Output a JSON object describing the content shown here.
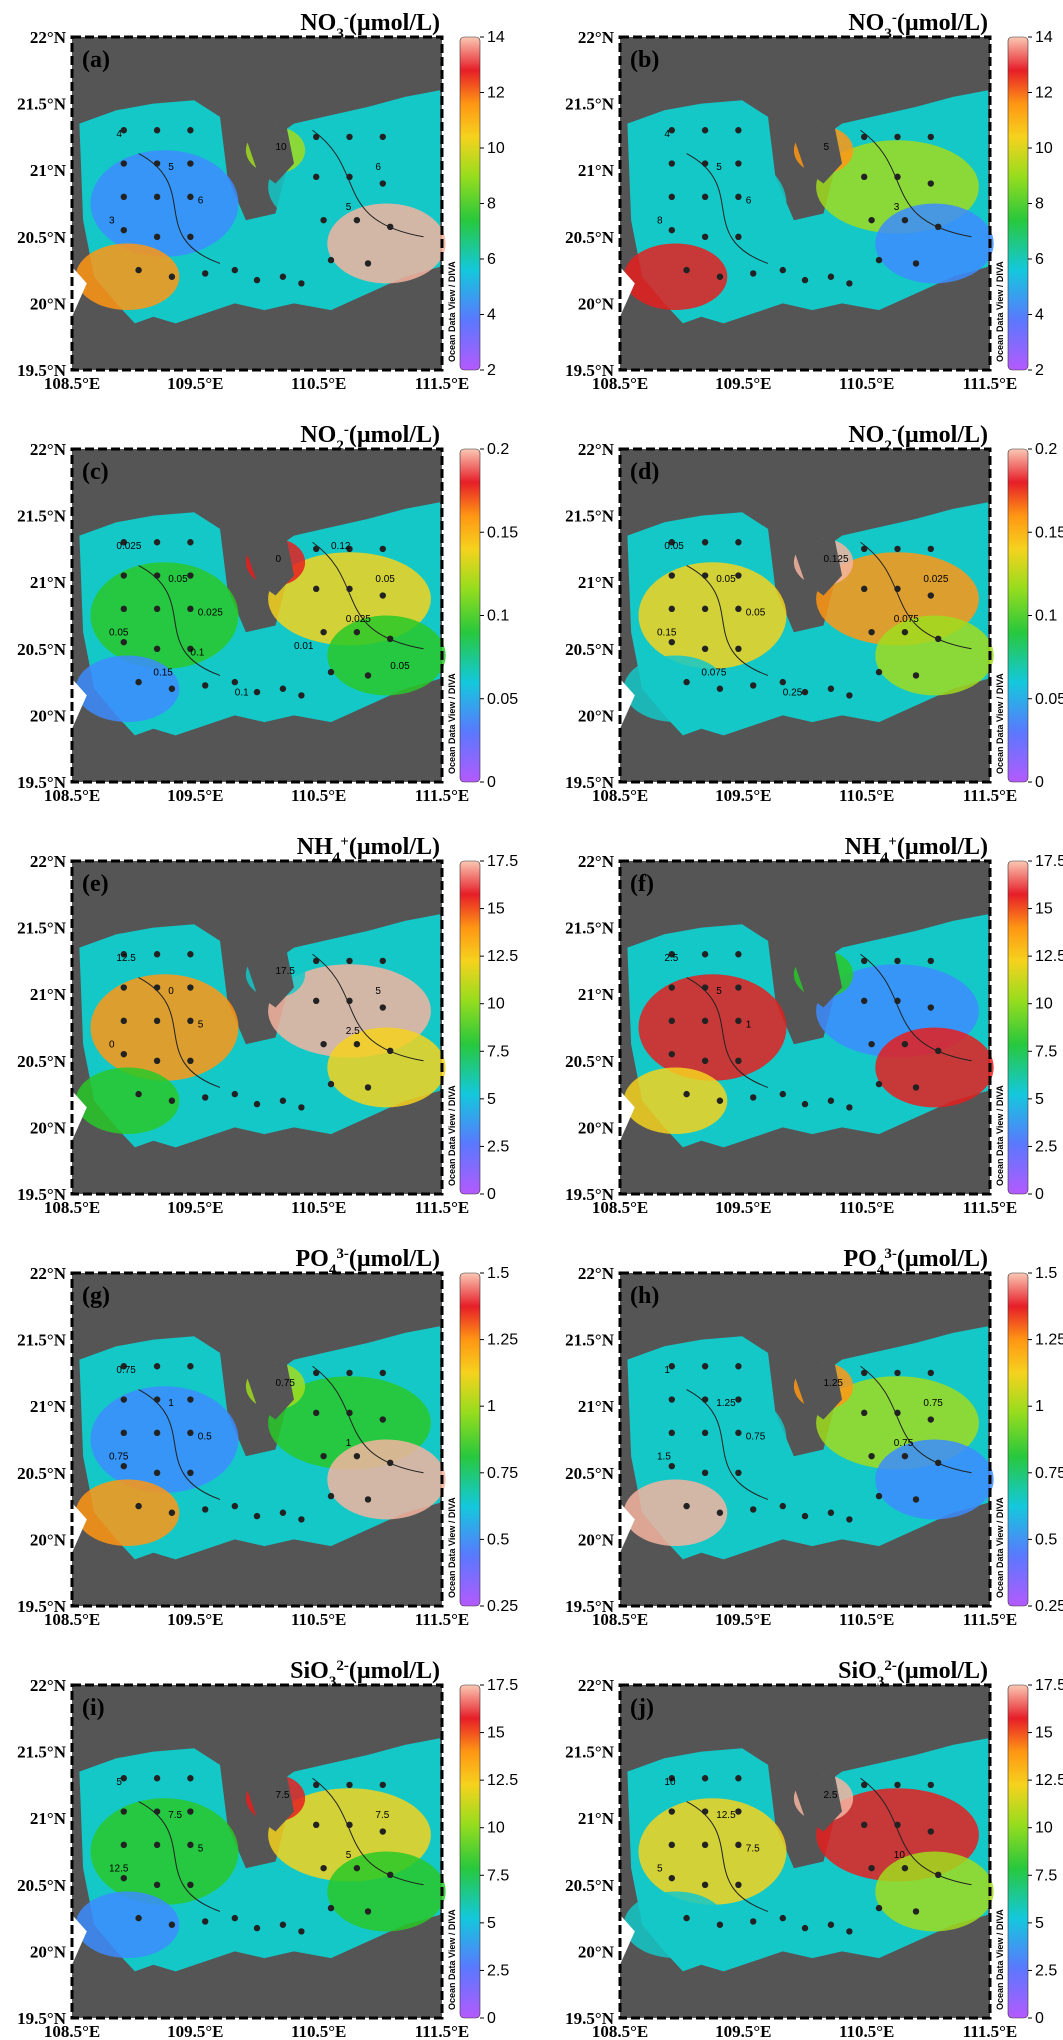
{
  "figure": {
    "lat_ticks": [
      "22°N",
      "21.5°N",
      "21°N",
      "20.5°N",
      "20°N",
      "19.5°N"
    ],
    "lon_ticks": [
      "108.5°E",
      "109.5°E",
      "110.5°E",
      "111.5°E"
    ],
    "credit": "Ocean Data View / DIVA",
    "colormap": [
      "#8c3cff",
      "#3c8cff",
      "#14c8c8",
      "#28c828",
      "#a0dc1e",
      "#f5d21e",
      "#ff9614",
      "#e61e1e",
      "#f5b4a0"
    ],
    "land_color": "#555555",
    "nodata_color": "#ffffff"
  },
  "panels": [
    {
      "id": "a",
      "label": "(a)",
      "title_main": "NO",
      "title_sub": "3",
      "title_sup": "-",
      "title_unit": "(µmol/L)",
      "cb_ticks": [
        "14",
        "12",
        "10",
        "8",
        "6",
        "4",
        "2"
      ],
      "cb_min": 2,
      "cb_max": 14,
      "contour_labels": [
        "4",
        "5",
        "6",
        "3",
        "10",
        "5",
        "6"
      ]
    },
    {
      "id": "b",
      "label": "(b)",
      "title_main": "NO",
      "title_sub": "3",
      "title_sup": "-",
      "title_unit": "(µmol/L)",
      "cb_ticks": [
        "14",
        "12",
        "10",
        "8",
        "6",
        "4",
        "2"
      ],
      "cb_min": 2,
      "cb_max": 14,
      "contour_labels": [
        "4",
        "5",
        "6",
        "8",
        "5",
        "3"
      ]
    },
    {
      "id": "c",
      "label": "(c)",
      "title_main": "NO",
      "title_sub": "2",
      "title_sup": "-",
      "title_unit": "(µmol/L)",
      "cb_ticks": [
        "0.2",
        "0.15",
        "0.1",
        "0.05",
        "0"
      ],
      "cb_min": 0,
      "cb_max": 0.2,
      "contour_labels": [
        "0.025",
        "0.05",
        "0.025",
        "0.05",
        "0",
        "0.025",
        "0.05",
        "0.15",
        "0.1",
        "0.05",
        "0.01",
        "0.1",
        "0.12"
      ]
    },
    {
      "id": "d",
      "label": "(d)",
      "title_main": "NO",
      "title_sub": "2",
      "title_sup": "-",
      "title_unit": "(µmol/L)",
      "cb_ticks": [
        "0.2",
        "0.15",
        "0.1",
        "0.05",
        "0"
      ],
      "cb_min": 0,
      "cb_max": 0.2,
      "contour_labels": [
        "0.05",
        "0.05",
        "0.05",
        "0.15",
        "0.125",
        "0.075",
        "0.025",
        "0.075",
        "0.25"
      ]
    },
    {
      "id": "e",
      "label": "(e)",
      "title_main": "NH",
      "title_sub": "4",
      "title_sup": "+",
      "title_unit": "(µmol/L)",
      "cb_ticks": [
        "17.5",
        "15",
        "12.5",
        "10",
        "7.5",
        "5",
        "2.5",
        "0"
      ],
      "cb_min": 0,
      "cb_max": 17.5,
      "contour_labels": [
        "12.5",
        "0",
        "5",
        "0",
        "17.5",
        "2.5",
        "5"
      ]
    },
    {
      "id": "f",
      "label": "(f)",
      "title_main": "NH",
      "title_sub": "4",
      "title_sup": "+",
      "title_unit": "(µmol/L)",
      "cb_ticks": [
        "17.5",
        "15",
        "12.5",
        "10",
        "7.5",
        "5",
        "2.5",
        "0"
      ],
      "cb_min": 0,
      "cb_max": 17.5,
      "contour_labels": [
        "2.5",
        "5",
        "1"
      ]
    },
    {
      "id": "g",
      "label": "(g)",
      "title_main": "PO",
      "title_sub": "4",
      "title_sup": "3-",
      "title_unit": "(µmol/L)",
      "cb_ticks": [
        "1.5",
        "1.25",
        "1",
        "0.75",
        "0.5",
        "0.25"
      ],
      "cb_min": 0.25,
      "cb_max": 1.5,
      "contour_labels": [
        "0.75",
        "1",
        "0.5",
        "0.75",
        "0.75",
        "1"
      ]
    },
    {
      "id": "h",
      "label": "(h)",
      "title_main": "PO",
      "title_sub": "4",
      "title_sup": "3-",
      "title_unit": "(µmol/L)",
      "cb_ticks": [
        "1.5",
        "1.25",
        "1",
        "0.75",
        "0.5",
        "0.25"
      ],
      "cb_min": 0.25,
      "cb_max": 1.5,
      "contour_labels": [
        "1",
        "1.25",
        "0.75",
        "1.5",
        "1.25",
        "0.75",
        "0.75"
      ]
    },
    {
      "id": "i",
      "label": "(i)",
      "title_main": "SiO",
      "title_sub": "3",
      "title_sup": "2-",
      "title_unit": "(µmol/L)",
      "cb_ticks": [
        "17.5",
        "15",
        "12.5",
        "10",
        "7.5",
        "5",
        "2.5",
        "0"
      ],
      "cb_min": 0,
      "cb_max": 17.5,
      "contour_labels": [
        "5",
        "7.5",
        "5",
        "12.5",
        "7.5",
        "5",
        "7.5"
      ]
    },
    {
      "id": "j",
      "label": "(j)",
      "title_main": "SiO",
      "title_sub": "3",
      "title_sup": "2-",
      "title_unit": "(µmol/L)",
      "cb_ticks": [
        "17.5",
        "15",
        "12.5",
        "10",
        "7.5",
        "5",
        "2.5",
        "0"
      ],
      "cb_min": 0,
      "cb_max": 17.5,
      "contour_labels": [
        "10",
        "12.5",
        "7.5",
        "5",
        "2.5",
        "10"
      ]
    }
  ]
}
